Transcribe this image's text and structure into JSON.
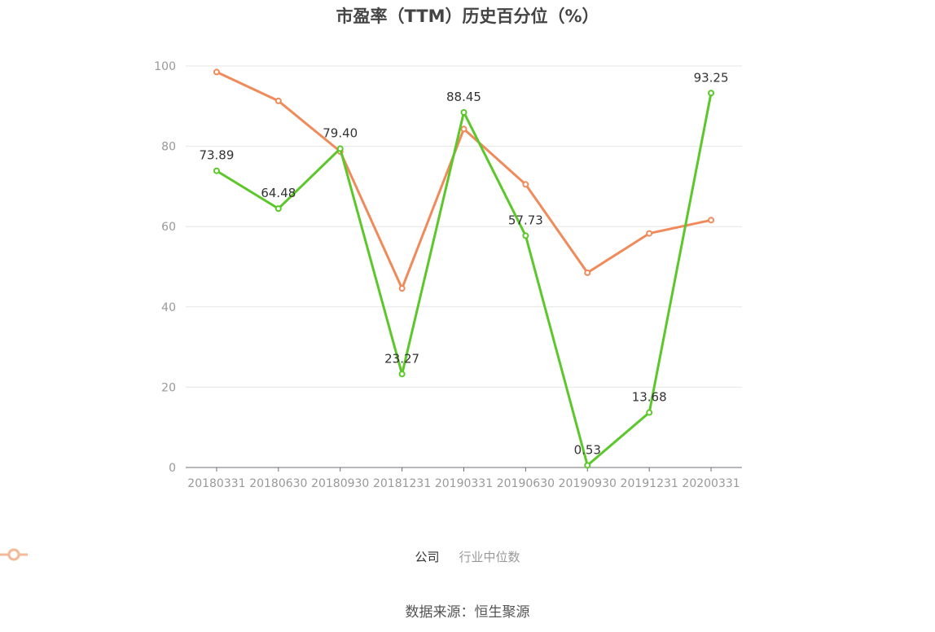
{
  "title": "市盈率（TTM）历史百分位（%）",
  "source": "数据来源：恒生聚源",
  "chart_data": {
    "type": "line",
    "categories": [
      "20180331",
      "20180630",
      "20180930",
      "20181231",
      "20190331",
      "20190630",
      "20190930",
      "20191231",
      "20200331"
    ],
    "series": [
      {
        "name": "公司",
        "color": "#5cc72a",
        "values": [
          73.89,
          64.48,
          79.4,
          23.27,
          88.45,
          57.73,
          0.53,
          13.68,
          93.25
        ],
        "labels": [
          "73.89",
          "64.48",
          "79.40",
          "23.27",
          "88.45",
          "57.73",
          "0.53",
          "13.68",
          "93.25"
        ]
      },
      {
        "name": "行业中位数",
        "color": "#f08a5a",
        "legend_color": "#f5b99a",
        "values": [
          98.5,
          91.3,
          78.7,
          44.6,
          84.3,
          70.5,
          48.5,
          58.3,
          61.6
        ]
      }
    ],
    "ylim": [
      0,
      100
    ],
    "yticks": [
      "0",
      "20",
      "40",
      "60",
      "80",
      "100"
    ],
    "xlabel": "",
    "ylabel": "",
    "grid": true,
    "legend_position": "bottom"
  }
}
